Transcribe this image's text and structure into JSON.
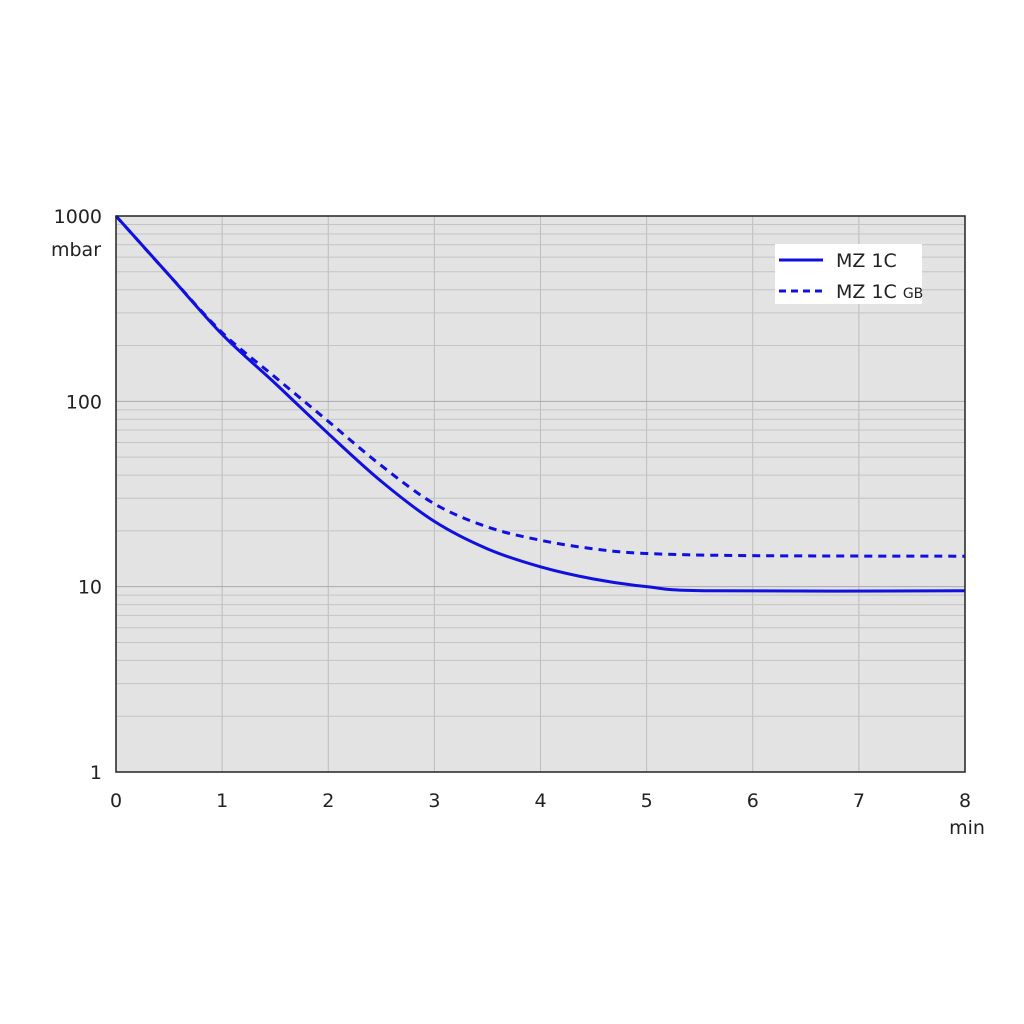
{
  "chart_data": {
    "type": "line",
    "title": "",
    "xlabel": "min",
    "ylabel": "mbar",
    "xlim": [
      0,
      8
    ],
    "ylim": [
      1,
      1000
    ],
    "yscale": "log",
    "grid": true,
    "legend_position": "top-right",
    "x_ticks": [
      "0",
      "1",
      "2",
      "3",
      "4",
      "5",
      "6",
      "7",
      "8"
    ],
    "y_ticks": [
      "1",
      "10",
      "100",
      "1000"
    ],
    "plot_background": "#e3e3e3",
    "series": [
      {
        "name": "MZ 1C",
        "name_suffix": "",
        "style": "solid",
        "color": "#1010e0",
        "x": [
          0,
          0.5,
          1,
          1.5,
          2,
          2.5,
          3,
          3.5,
          4,
          4.5,
          5,
          5.6,
          8
        ],
        "y": [
          1000,
          480,
          230,
          125,
          67,
          37,
          22.5,
          16,
          12.8,
          11,
          10,
          9.5,
          9.5
        ]
      },
      {
        "name": "MZ 1C",
        "name_suffix": "GB",
        "style": "dashed",
        "color": "#1010e0",
        "x": [
          0,
          0.5,
          1,
          1.5,
          2,
          2.5,
          3,
          3.5,
          4,
          4.5,
          5,
          6,
          8
        ],
        "y": [
          1000,
          480,
          235,
          135,
          78,
          45,
          28,
          21,
          17.8,
          16,
          15.1,
          14.7,
          14.6
        ]
      }
    ]
  }
}
